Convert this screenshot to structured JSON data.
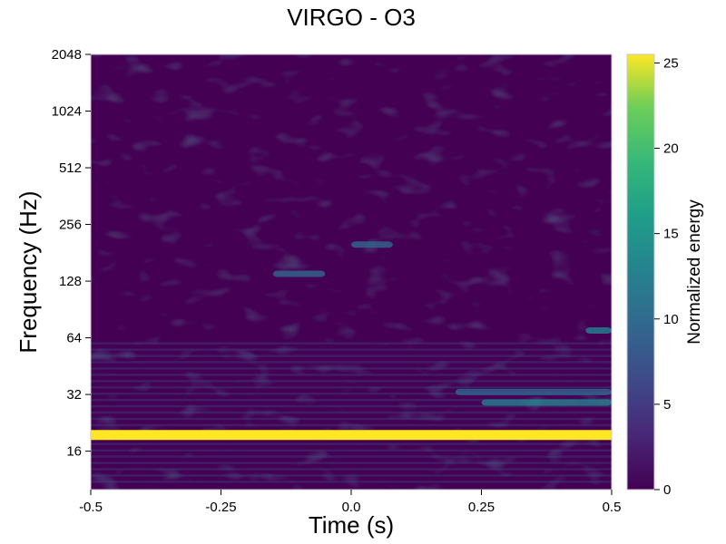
{
  "chart_data": {
    "type": "heatmap",
    "title": "VIRGO - O3",
    "xlabel": "Time (s)",
    "ylabel": "Frequency (Hz)",
    "xlim": [
      -0.5,
      0.5
    ],
    "ylim": [
      10,
      2048
    ],
    "yscale": "log2",
    "x_ticks": [
      -0.5,
      -0.25,
      0.0,
      0.25,
      0.5
    ],
    "x_tick_labels": [
      "-0.5",
      "-0.25",
      "0.0",
      "0.25",
      "0.5"
    ],
    "y_ticks": [
      16,
      32,
      64,
      128,
      256,
      512,
      1024,
      2048
    ],
    "y_tick_labels": [
      "16",
      "32",
      "64",
      "128",
      "256",
      "512",
      "1024",
      "2048"
    ],
    "colormap": "viridis",
    "colorbar": {
      "label": "Normalized energy",
      "range": [
        0,
        25.5
      ],
      "ticks": [
        0,
        5,
        10,
        15,
        20,
        25
      ],
      "tick_labels": [
        "0",
        "5",
        "10",
        "15",
        "20",
        "25"
      ]
    },
    "features": [
      {
        "freq": 19.5,
        "t_start": -0.5,
        "t_end": 0.5,
        "energy": 25
      },
      {
        "freq": 29,
        "t_start": 0.25,
        "t_end": 0.5,
        "energy": 14
      },
      {
        "freq": 33,
        "t_start": 0.2,
        "t_end": 0.5,
        "energy": 11
      },
      {
        "freq": 70,
        "t_start": 0.45,
        "t_end": 0.5,
        "energy": 12
      },
      {
        "freq": 200,
        "t_start": 0.0,
        "t_end": 0.08,
        "energy": 11
      },
      {
        "freq": 140,
        "t_start": -0.15,
        "t_end": -0.05,
        "energy": 9
      }
    ]
  }
}
